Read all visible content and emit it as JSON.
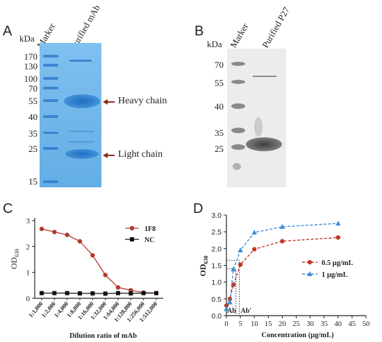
{
  "panel_a": {
    "letter": "A",
    "kda_label": "kDa",
    "marker_label": "Marker",
    "lane2_label": "Purified mAb",
    "ladder": [
      "170",
      "130",
      "100",
      "70",
      "55",
      "40",
      "35",
      "25",
      "15"
    ],
    "arrows": [
      "Heavy chain",
      "Light chain"
    ],
    "colors": {
      "gel": "#6fb7e8",
      "band": "#2a7fd0",
      "arrow": "#8b2a1a"
    }
  },
  "panel_b": {
    "letter": "B",
    "kda_label": "kDa",
    "marker_label": "Marker",
    "lane2_label": "Purified P27",
    "ladder": [
      "70",
      "55",
      "40",
      "35",
      "25"
    ],
    "colors": {
      "blot": "#ececec",
      "band": "#555555"
    }
  },
  "chart_c": {
    "letter": "C",
    "chart_data": {
      "type": "line",
      "categories": [
        "1:1,000",
        "1:2,000",
        "1:4,000",
        "1:8,000",
        "1:16,000",
        "1:32,000",
        "1:64,000",
        "1:128,000",
        "1:256,000",
        "1:512,000"
      ],
      "series": [
        {
          "name": "1F8",
          "values": [
            2.68,
            2.56,
            2.45,
            2.2,
            1.66,
            0.9,
            0.42,
            0.31,
            0.22,
            0.2
          ],
          "color": "#b03a2e",
          "marker": "circle"
        },
        {
          "name": "NC",
          "values": [
            0.2,
            0.2,
            0.2,
            0.19,
            0.19,
            0.18,
            0.2,
            0.19,
            0.2,
            0.2
          ],
          "color": "#111111",
          "marker": "square"
        }
      ],
      "xlabel": "Dilution ratio of mAb",
      "ylabel": "OD630",
      "ylim": [
        0,
        3
      ],
      "yticks": [
        "0",
        "1",
        "2",
        "3"
      ],
      "legend": "top-right"
    }
  },
  "chart_d": {
    "letter": "D",
    "chart_data": {
      "type": "line",
      "series": [
        {
          "name": "0.5 μg/mL",
          "x": [
            0,
            1.25,
            2.5,
            5,
            10,
            20,
            40
          ],
          "y": [
            0.3,
            0.5,
            0.92,
            1.52,
            1.98,
            2.22,
            2.33
          ],
          "color": "#c0392b",
          "marker": "circle",
          "dash": true
        },
        {
          "name": "1 μg/mL",
          "x": [
            0,
            1.25,
            2.5,
            5,
            10,
            20,
            40
          ],
          "y": [
            0.2,
            0.4,
            1.38,
            1.95,
            2.48,
            2.65,
            2.75
          ],
          "color": "#3b8fd9",
          "marker": "triangle",
          "dash": true
        }
      ],
      "xlabel": "Concentration (μg/mL)",
      "ylabel": "OD630",
      "xlim": [
        0,
        50
      ],
      "ylim": [
        0,
        3
      ],
      "xticks": [
        "0",
        "5",
        "10",
        "15",
        "20",
        "25",
        "30",
        "35",
        "40",
        "45",
        "50"
      ],
      "yticks": [
        "0.0",
        "0.5",
        "1.0",
        "1.5",
        "2.0",
        "2.5",
        "3.0"
      ],
      "annotation_ab": "Ab",
      "annotation_ab2": "Ab'",
      "legend": "right"
    }
  }
}
